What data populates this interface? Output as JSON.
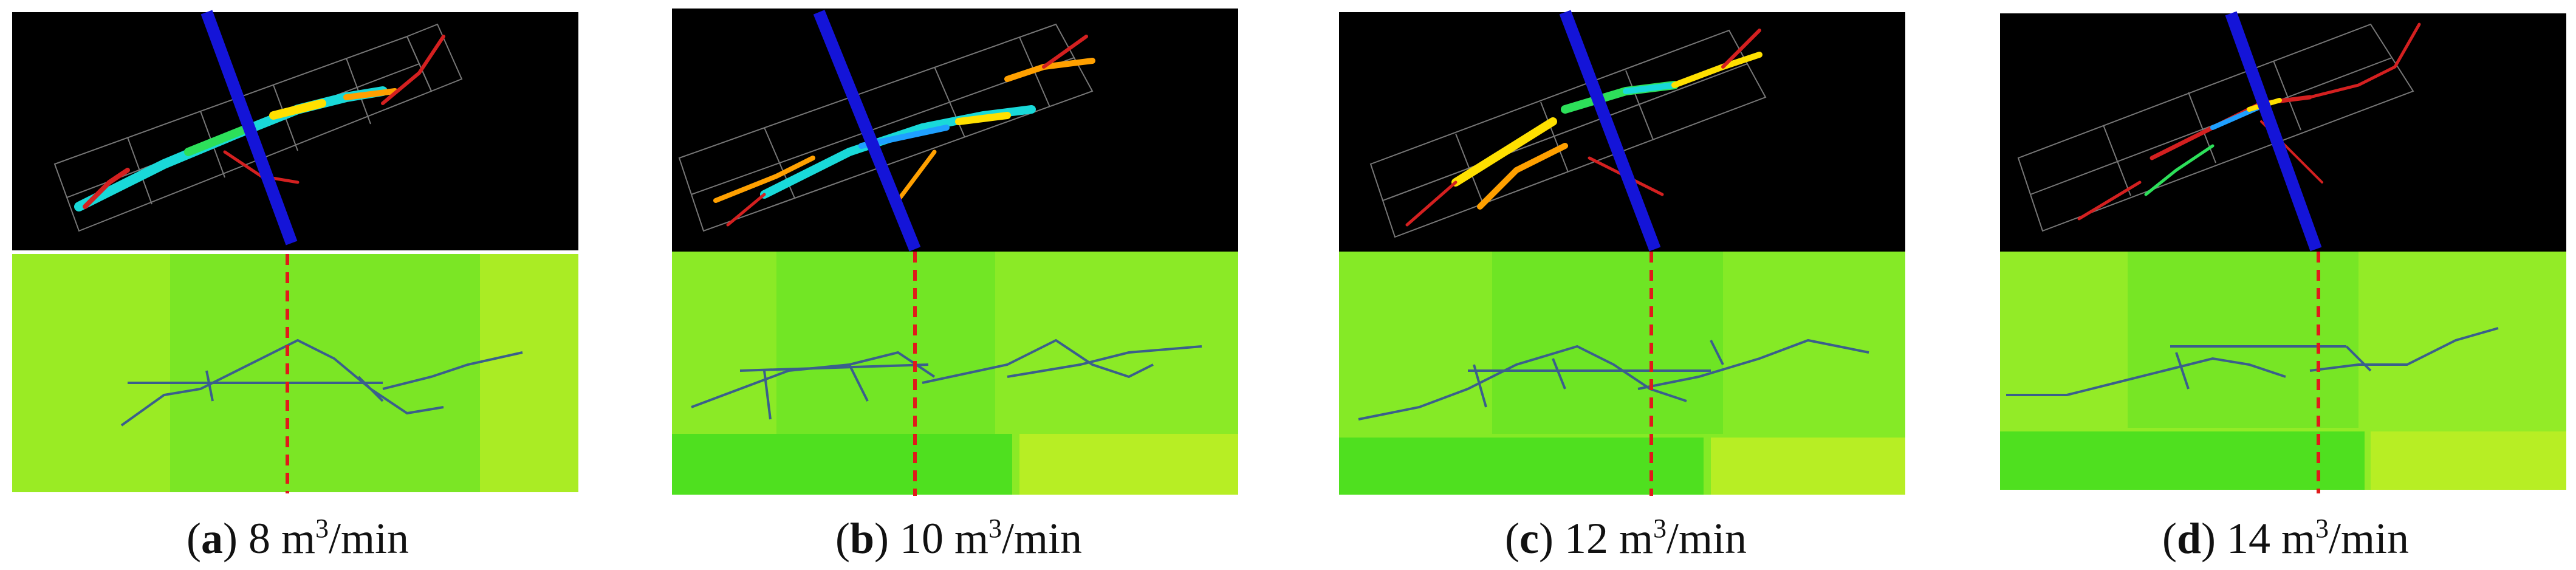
{
  "panels": [
    {
      "letter": "a",
      "rate": "8",
      "unit_prefix": "m",
      "unit_power": "3",
      "unit_suffix": "/min"
    },
    {
      "letter": "b",
      "rate": "10",
      "unit_prefix": "m",
      "unit_power": "3",
      "unit_suffix": "/min"
    },
    {
      "letter": "c",
      "rate": "12",
      "unit_prefix": "m",
      "unit_power": "3",
      "unit_suffix": "/min"
    },
    {
      "letter": "d",
      "rate": "14",
      "unit_prefix": "m",
      "unit_power": "3",
      "unit_suffix": "/min"
    }
  ],
  "colors": {
    "wellbore": "#1414d8",
    "fracture_trace": "#3a5f8c",
    "perforation_line": "#e01a1a",
    "map_green": "#7be625",
    "map_yellow_green": "#b7ee24",
    "view_background": "#000000"
  }
}
